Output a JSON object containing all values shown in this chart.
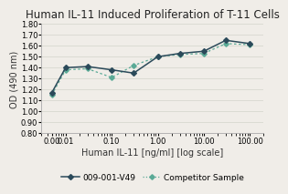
{
  "title": "Human IL-11 Induced Proliferation of T-11 Cells",
  "xlabel": "Human IL-11 [ng/ml] [log scale]",
  "ylabel": "OD (490 nm)",
  "x_values": [
    0.005,
    0.01,
    0.03,
    0.1,
    0.3,
    1.0,
    3.0,
    10.0,
    30.0,
    100.0
  ],
  "x_ticks": [
    0.005,
    0.01,
    0.1,
    1.0,
    10.0,
    100.0
  ],
  "x_tick_labels": [
    "0.00",
    "0.01",
    "0.10",
    "1.00",
    "10.00",
    "100.00"
  ],
  "ylim": [
    0.8,
    1.8
  ],
  "y_ticks": [
    0.8,
    0.9,
    1.0,
    1.1,
    1.2,
    1.3,
    1.4,
    1.5,
    1.6,
    1.7,
    1.8
  ],
  "line1_values": [
    1.17,
    1.4,
    1.41,
    1.38,
    1.35,
    1.5,
    1.53,
    1.55,
    1.65,
    1.62
  ],
  "line2_values": [
    1.15,
    1.38,
    1.39,
    1.31,
    1.42,
    1.5,
    1.52,
    1.53,
    1.62,
    1.61
  ],
  "line1_color": "#2b4a5a",
  "line2_color": "#5aaa96",
  "line1_label": "009-001-V49",
  "line2_label": "Competitor Sample",
  "bg_color": "#f0ede8",
  "grid_color": "#d8d8d0",
  "title_fontsize": 8.5,
  "label_fontsize": 7,
  "tick_fontsize": 6,
  "legend_fontsize": 6.5
}
